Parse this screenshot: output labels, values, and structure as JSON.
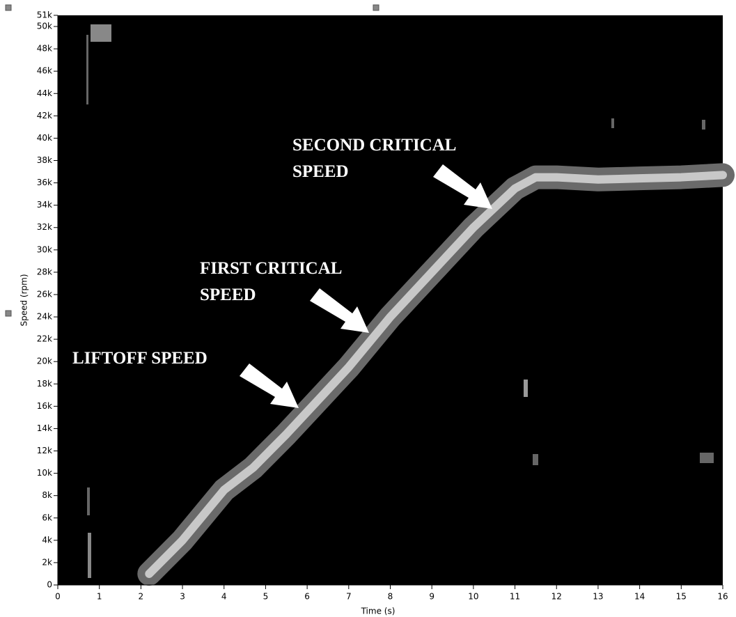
{
  "chart_data": {
    "type": "line",
    "x_label": "Time (s)",
    "y_label": "Speed (rpm)",
    "x": [
      2.2,
      3,
      4,
      4.7,
      5.5,
      6,
      7,
      8,
      9,
      10,
      11,
      11.5,
      12,
      13,
      14,
      15,
      16
    ],
    "series": [
      {
        "color": "#c8c8c8",
        "values": [
          1000,
          4000,
          8500,
          10500,
          13500,
          15500,
          19500,
          24000,
          28000,
          32000,
          35500,
          36500,
          36500,
          36300,
          36400,
          36500,
          36700
        ]
      }
    ],
    "xlim": [
      0,
      16
    ],
    "xticks": [
      0,
      1,
      2,
      3,
      4,
      5,
      6,
      7,
      8,
      9,
      10,
      11,
      12,
      13,
      14,
      15,
      16
    ],
    "ylim": [
      0,
      51000
    ],
    "yticks": [
      {
        "value": 0,
        "label": "0"
      },
      {
        "value": 2000,
        "label": "2k"
      },
      {
        "value": 4000,
        "label": "4k"
      },
      {
        "value": 6000,
        "label": "6k"
      },
      {
        "value": 8000,
        "label": "8k"
      },
      {
        "value": 10000,
        "label": "10k"
      },
      {
        "value": 12000,
        "label": "12k"
      },
      {
        "value": 14000,
        "label": "14k"
      },
      {
        "value": 16000,
        "label": "16k"
      },
      {
        "value": 18000,
        "label": "18k"
      },
      {
        "value": 20000,
        "label": "20k"
      },
      {
        "value": 22000,
        "label": "22k"
      },
      {
        "value": 24000,
        "label": "24k"
      },
      {
        "value": 26000,
        "label": "26k"
      },
      {
        "value": 28000,
        "label": "28k"
      },
      {
        "value": 30000,
        "label": "30k"
      },
      {
        "value": 32000,
        "label": "32k"
      },
      {
        "value": 34000,
        "label": "34k"
      },
      {
        "value": 36000,
        "label": "36k"
      },
      {
        "value": 38000,
        "label": "38k"
      },
      {
        "value": 40000,
        "label": "40k"
      },
      {
        "value": 42000,
        "label": "42k"
      },
      {
        "value": 44000,
        "label": "44k"
      },
      {
        "value": 46000,
        "label": "46k"
      },
      {
        "value": 48000,
        "label": "48k"
      },
      {
        "value": 50000,
        "label": "50k"
      },
      {
        "value": 51000,
        "label": "51k"
      }
    ],
    "annotations": [
      {
        "lines": [
          "SECOND CRITICAL",
          "SPEED"
        ]
      },
      {
        "lines": [
          "FIRST CRITICAL",
          "SPEED"
        ]
      },
      {
        "lines": [
          "LIFTOFF SPEED"
        ]
      }
    ]
  }
}
